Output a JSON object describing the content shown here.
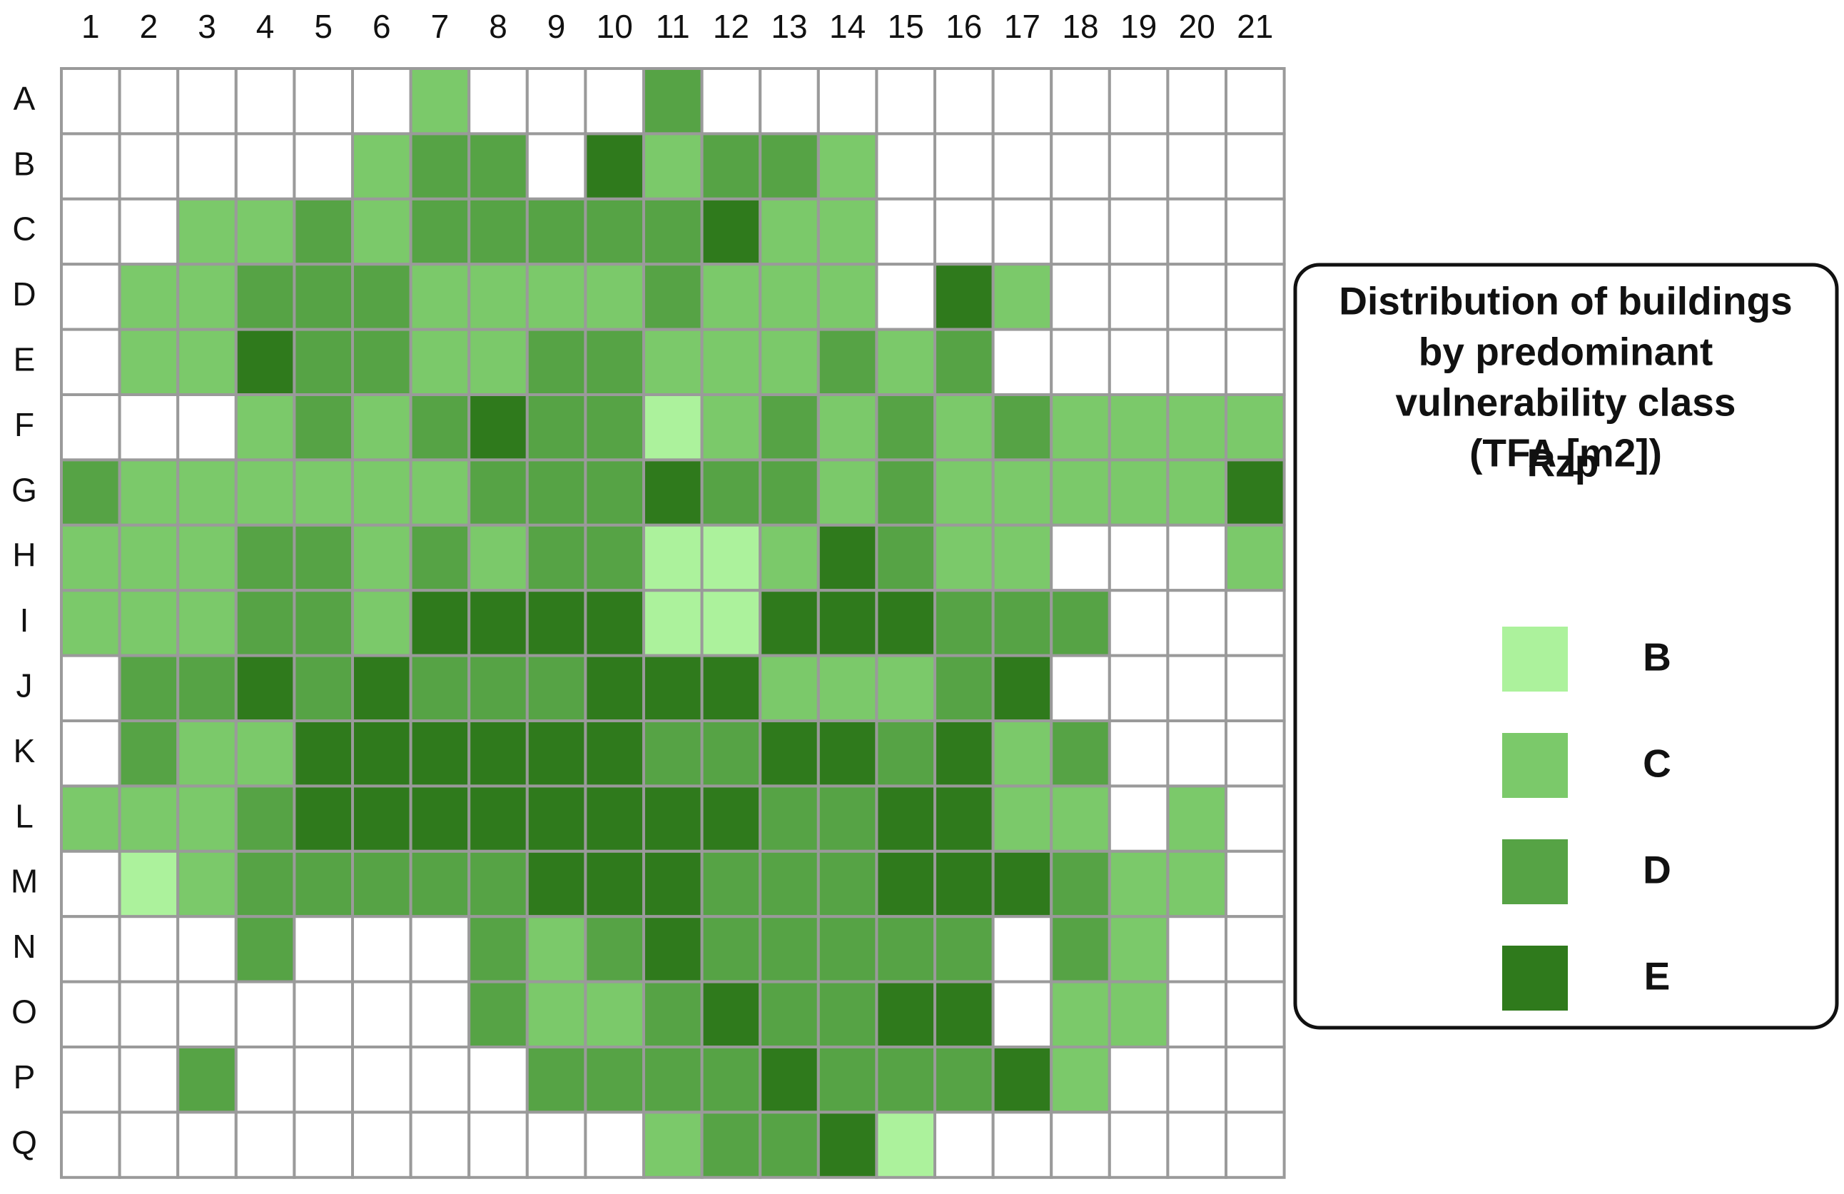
{
  "columns": [
    1,
    2,
    3,
    4,
    5,
    6,
    7,
    8,
    9,
    10,
    11,
    12,
    13,
    14,
    15,
    16,
    17,
    18,
    19,
    20,
    21
  ],
  "rows": [
    "A",
    "B",
    "C",
    "D",
    "E",
    "F",
    "G",
    "H",
    "I",
    "J",
    "K",
    "L",
    "M",
    "N",
    "O",
    "P",
    "Q"
  ],
  "grid": [
    [
      null,
      null,
      null,
      null,
      null,
      null,
      "C",
      null,
      null,
      null,
      "D",
      null,
      null,
      null,
      null,
      null,
      null,
      null,
      null,
      null,
      null
    ],
    [
      null,
      null,
      null,
      null,
      null,
      "C",
      "D",
      "D",
      null,
      "E",
      "C",
      "D",
      "D",
      "C",
      null,
      null,
      null,
      null,
      null,
      null,
      null
    ],
    [
      null,
      null,
      "C",
      "C",
      "D",
      "C",
      "D",
      "D",
      "D",
      "D",
      "D",
      "E",
      "C",
      "C",
      null,
      null,
      null,
      null,
      null,
      null,
      null
    ],
    [
      null,
      "C",
      "C",
      "D",
      "D",
      "D",
      "C",
      "C",
      "C",
      "C",
      "D",
      "C",
      "C",
      "C",
      null,
      "E",
      "C",
      null,
      null,
      null,
      null
    ],
    [
      null,
      "C",
      "C",
      "E",
      "D",
      "D",
      "C",
      "C",
      "D",
      "D",
      "C",
      "C",
      "C",
      "D",
      "C",
      "D",
      null,
      null,
      null,
      null,
      null
    ],
    [
      null,
      null,
      null,
      "C",
      "D",
      "C",
      "D",
      "E",
      "D",
      "D",
      "B",
      "C",
      "D",
      "C",
      "D",
      "C",
      "D",
      "C",
      "C",
      "C",
      "C"
    ],
    [
      "D",
      "C",
      "C",
      "C",
      "C",
      "C",
      "C",
      "D",
      "D",
      "D",
      "E",
      "D",
      "D",
      "C",
      "D",
      "C",
      "C",
      "C",
      "C",
      "C",
      "E"
    ],
    [
      "C",
      "C",
      "C",
      "D",
      "D",
      "C",
      "D",
      "C",
      "D",
      "D",
      "B",
      "B",
      "C",
      "E",
      "D",
      "C",
      "C",
      null,
      null,
      null,
      "C"
    ],
    [
      "C",
      "C",
      "C",
      "D",
      "D",
      "C",
      "E",
      "E",
      "E",
      "E",
      "B",
      "B",
      "E",
      "E",
      "E",
      "D",
      "D",
      "D",
      null,
      null,
      null
    ],
    [
      null,
      "D",
      "D",
      "E",
      "D",
      "E",
      "D",
      "D",
      "D",
      "E",
      "E",
      "E",
      "C",
      "C",
      "C",
      "D",
      "E",
      null,
      null,
      null,
      null
    ],
    [
      null,
      "D",
      "C",
      "C",
      "E",
      "E",
      "E",
      "E",
      "E",
      "E",
      "D",
      "D",
      "E",
      "E",
      "D",
      "E",
      "C",
      "D",
      null,
      null,
      null
    ],
    [
      "C",
      "C",
      "C",
      "D",
      "E",
      "E",
      "E",
      "E",
      "E",
      "E",
      "E",
      "E",
      "D",
      "D",
      "E",
      "E",
      "C",
      "C",
      null,
      "C",
      null
    ],
    [
      null,
      "B",
      "C",
      "D",
      "D",
      "D",
      "D",
      "D",
      "E",
      "E",
      "E",
      "D",
      "D",
      "D",
      "E",
      "E",
      "E",
      "D",
      "C",
      "C",
      null
    ],
    [
      null,
      null,
      null,
      "D",
      null,
      null,
      null,
      "D",
      "C",
      "D",
      "E",
      "D",
      "D",
      "D",
      "D",
      "D",
      null,
      "D",
      "C",
      null,
      null
    ],
    [
      null,
      null,
      null,
      null,
      null,
      null,
      null,
      "D",
      "C",
      "C",
      "D",
      "E",
      "D",
      "D",
      "E",
      "E",
      null,
      "C",
      "C",
      null,
      null
    ],
    [
      null,
      null,
      "D",
      null,
      null,
      null,
      null,
      null,
      "D",
      "D",
      "D",
      "D",
      "E",
      "D",
      "D",
      "D",
      "E",
      "C",
      null,
      null,
      null
    ],
    [
      null,
      null,
      null,
      null,
      null,
      null,
      null,
      null,
      null,
      null,
      "C",
      "D",
      "D",
      "E",
      "B",
      null,
      null,
      null,
      null,
      null,
      null
    ]
  ],
  "legend": {
    "title": [
      "Distribution of buildings",
      "by predominant",
      "vulnerability class",
      "(TFA [m2])"
    ],
    "subtitle": "Rzp",
    "items": [
      {
        "label": "B",
        "color": "#acf29c"
      },
      {
        "label": "C",
        "color": "#7bc96a"
      },
      {
        "label": "D",
        "color": "#56a345"
      },
      {
        "label": "E",
        "color": "#2f7a1c"
      }
    ]
  }
}
